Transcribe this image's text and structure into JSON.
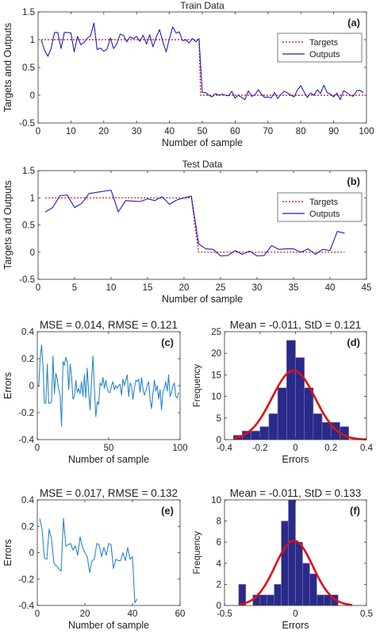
{
  "chart_data": [
    {
      "id": "a",
      "type": "line",
      "title": "Train Data",
      "panel_label": "(a)",
      "xlabel": "Number of sample",
      "ylabel": "Targets and Outputs",
      "xlim": [
        0,
        100
      ],
      "ylim": [
        -0.5,
        1.5
      ],
      "xticks": [
        0,
        10,
        20,
        30,
        40,
        50,
        60,
        70,
        80,
        90,
        100
      ],
      "yticks": [
        -0.5,
        0,
        0.5,
        1,
        1.5
      ],
      "legend": {
        "position": "top-right",
        "entries": [
          "Targets",
          "Outputs"
        ]
      },
      "series": [
        {
          "name": "Targets",
          "color": "#cc0000",
          "style": "dotted",
          "x": [
            1,
            49,
            49.5,
            99
          ],
          "y": [
            1,
            1,
            0,
            0
          ]
        },
        {
          "name": "Outputs",
          "color": "#1f1fb4",
          "style": "solid",
          "x": [
            1,
            2,
            3,
            4,
            5,
            6,
            7,
            8,
            9,
            10,
            11,
            12,
            13,
            14,
            15,
            16,
            17,
            18,
            19,
            20,
            21,
            22,
            23,
            24,
            25,
            26,
            27,
            28,
            29,
            30,
            31,
            32,
            33,
            34,
            35,
            36,
            37,
            38,
            39,
            40,
            41,
            42,
            43,
            44,
            45,
            46,
            47,
            48,
            49,
            50,
            51,
            52,
            53,
            54,
            55,
            56,
            57,
            58,
            59,
            60,
            61,
            62,
            63,
            64,
            65,
            66,
            67,
            68,
            69,
            70,
            71,
            72,
            73,
            74,
            75,
            76,
            77,
            78,
            79,
            80,
            81,
            82,
            83,
            84,
            85,
            86,
            87,
            88,
            89,
            90,
            91,
            92,
            93,
            94,
            95,
            96,
            97,
            98,
            99
          ],
          "y": [
            0.99,
            0.8,
            0.7,
            0.85,
            1.13,
            1.13,
            0.84,
            1.13,
            1.13,
            1.12,
            0.78,
            1.06,
            0.91,
            0.95,
            1.03,
            1.07,
            1.3,
            0.82,
            0.85,
            0.79,
            0.83,
            1.03,
            0.84,
            0.93,
            1.1,
            1.08,
            0.96,
            1.05,
            1.02,
            1.06,
            0.97,
            1.08,
            0.92,
            1.09,
            0.87,
            1.05,
            1.18,
            0.96,
            0.78,
            1.02,
            1.23,
            1.12,
            1.14,
            0.98,
            1.0,
            0.94,
            1.02,
            0.96,
            1.02,
            0.05,
            0.05,
            0.0,
            -0.03,
            0.03,
            0.0,
            0.02,
            0.0,
            -0.01,
            0.07,
            -0.05,
            0.0,
            -0.04,
            -0.08,
            0.08,
            -0.02,
            0.0,
            0.1,
            0.02,
            -0.04,
            -0.03,
            -0.05,
            0.05,
            -0.06,
            0.02,
            0.07,
            0.04,
            0.0,
            -0.03,
            0.1,
            0.17,
            0.06,
            -0.04,
            0.04,
            0.0,
            0.1,
            0.03,
            0.18,
            0.05,
            0.02,
            -0.03,
            0.04,
            -0.08,
            0.08,
            0.05,
            0.0,
            -0.02,
            0.08,
            0.09,
            0.05
          ]
        }
      ]
    },
    {
      "id": "b",
      "type": "line",
      "title": "Test Data",
      "panel_label": "(b)",
      "xlabel": "Number of sample",
      "ylabel": "Targets and Outputs",
      "xlim": [
        0,
        45
      ],
      "ylim": [
        -0.5,
        1.5
      ],
      "xticks": [
        0,
        5,
        10,
        15,
        20,
        25,
        30,
        35,
        40,
        45
      ],
      "yticks": [
        -0.5,
        0,
        0.5,
        1,
        1.5
      ],
      "legend": {
        "position": "top-right",
        "entries": [
          "Targets",
          "Outputs"
        ]
      },
      "series": [
        {
          "name": "Targets",
          "color": "#cc0000",
          "style": "dotted",
          "x": [
            1,
            21,
            22,
            42
          ],
          "y": [
            1,
            1,
            0,
            0
          ]
        },
        {
          "name": "Outputs",
          "color": "#1f1fb4",
          "style": "solid",
          "x": [
            1,
            2,
            3,
            4,
            5,
            6,
            7,
            8,
            9,
            10,
            11,
            12,
            13,
            14,
            15,
            16,
            17,
            18,
            19,
            20,
            21,
            22,
            23,
            24,
            25,
            26,
            27,
            28,
            29,
            30,
            31,
            32,
            33,
            34,
            35,
            36,
            37,
            38,
            39,
            40,
            41,
            42
          ],
          "y": [
            0.74,
            0.82,
            1.04,
            1.05,
            0.82,
            0.9,
            1.08,
            1.1,
            1.12,
            1.14,
            0.74,
            0.95,
            0.94,
            0.93,
            0.98,
            0.95,
            1.02,
            0.88,
            0.96,
            1.0,
            1.03,
            0.15,
            0.06,
            0.05,
            -0.07,
            -0.06,
            0.03,
            -0.04,
            0.02,
            -0.07,
            -0.06,
            0.12,
            0.05,
            0.06,
            0.06,
            0.0,
            0.06,
            -0.04,
            0.05,
            0.03,
            0.38,
            0.35
          ]
        }
      ]
    },
    {
      "id": "c",
      "type": "line",
      "title": "MSE = 0.014, RMSE = 0.121",
      "panel_label": "(c)",
      "xlabel": "Number of sample",
      "ylabel": "Errors",
      "xlim": [
        0,
        100
      ],
      "ylim": [
        -0.4,
        0.4
      ],
      "xticks": [
        0,
        50,
        100
      ],
      "yticks": [
        -0.4,
        -0.2,
        0,
        0.2,
        0.4
      ],
      "series": [
        {
          "name": "",
          "color": "#2b86c5",
          "style": "solid",
          "x": [
            1,
            2,
            3,
            4,
            5,
            6,
            7,
            8,
            9,
            10,
            11,
            12,
            13,
            14,
            15,
            16,
            17,
            18,
            19,
            20,
            21,
            22,
            23,
            24,
            25,
            26,
            27,
            28,
            29,
            30,
            31,
            32,
            33,
            34,
            35,
            36,
            37,
            38,
            39,
            40,
            41,
            42,
            43,
            44,
            45,
            46,
            47,
            48,
            49,
            50,
            51,
            52,
            53,
            54,
            55,
            56,
            57,
            58,
            59,
            60,
            61,
            62,
            63,
            64,
            65,
            66,
            67,
            68,
            69,
            70,
            71,
            72,
            73,
            74,
            75,
            76,
            77,
            78,
            79,
            80,
            81,
            82,
            83,
            84,
            85,
            86,
            87,
            88,
            89,
            90,
            91,
            92,
            93,
            94,
            95,
            96,
            97,
            98,
            99
          ],
          "y": [
            -0.01,
            0.2,
            0.3,
            0.15,
            -0.13,
            -0.13,
            0.16,
            -0.13,
            -0.13,
            -0.12,
            0.22,
            -0.06,
            0.09,
            0.05,
            -0.03,
            -0.07,
            -0.3,
            0.18,
            0.15,
            0.21,
            0.17,
            -0.03,
            0.16,
            0.07,
            -0.1,
            -0.08,
            0.04,
            -0.05,
            -0.02,
            -0.06,
            0.03,
            -0.08,
            0.08,
            -0.09,
            0.13,
            -0.05,
            -0.18,
            0.04,
            0.22,
            -0.02,
            -0.23,
            -0.12,
            -0.14,
            0.02,
            0.0,
            0.06,
            -0.02,
            0.04,
            -0.02,
            -0.05,
            -0.05,
            0.0,
            0.03,
            -0.03,
            0.0,
            -0.02,
            0.0,
            0.01,
            -0.07,
            0.05,
            0.0,
            0.04,
            0.08,
            -0.08,
            0.02,
            0.0,
            -0.1,
            -0.02,
            0.04,
            0.03,
            0.05,
            -0.05,
            0.06,
            -0.02,
            -0.07,
            -0.04,
            0.0,
            0.03,
            -0.1,
            -0.17,
            -0.06,
            0.04,
            -0.04,
            0.0,
            -0.1,
            -0.03,
            -0.18,
            -0.05,
            -0.02,
            0.03,
            -0.04,
            0.08,
            -0.08,
            -0.05,
            0.0,
            0.02,
            -0.08,
            -0.09,
            -0.05
          ]
        }
      ]
    },
    {
      "id": "d",
      "type": "bar",
      "title": "Mean = -0.011, StD = 0.121",
      "panel_label": "(d)",
      "xlabel": "Errors",
      "ylabel": "Frequency",
      "xlim": [
        -0.4,
        0.4
      ],
      "ylim": [
        0,
        25
      ],
      "xticks": [
        -0.4,
        -0.2,
        0,
        0.2,
        0.4
      ],
      "yticks": [
        0,
        5,
        10,
        15,
        20,
        25
      ],
      "bin_edges": [
        -0.35,
        -0.3,
        -0.25,
        -0.2,
        -0.15,
        -0.1,
        -0.05,
        0.0,
        0.05,
        0.1,
        0.15,
        0.2,
        0.25,
        0.3
      ],
      "values": [
        1,
        2,
        2,
        3,
        6,
        12,
        23,
        19,
        12,
        6,
        4,
        4,
        3
      ],
      "bar_color": "#2a2a8a",
      "fit": {
        "type": "normal",
        "mean": -0.011,
        "std": 0.121,
        "color": "#e01010"
      }
    },
    {
      "id": "e",
      "type": "line",
      "title": "MSE = 0.017, RMSE = 0.132",
      "panel_label": "(e)",
      "xlabel": "Number of sample",
      "ylabel": "Errors",
      "xlim": [
        0,
        60
      ],
      "ylim": [
        -0.4,
        0.4
      ],
      "xticks": [
        0,
        20,
        40,
        60
      ],
      "yticks": [
        -0.4,
        -0.2,
        0,
        0.2,
        0.4
      ],
      "series": [
        {
          "name": "",
          "color": "#2b86c5",
          "style": "solid",
          "x": [
            1,
            2,
            3,
            4,
            5,
            6,
            7,
            8,
            9,
            10,
            11,
            12,
            13,
            14,
            15,
            16,
            17,
            18,
            19,
            20,
            21,
            22,
            23,
            24,
            25,
            26,
            27,
            28,
            29,
            30,
            31,
            32,
            33,
            34,
            35,
            36,
            37,
            38,
            39,
            40,
            41,
            42
          ],
          "y": [
            0.26,
            0.18,
            -0.04,
            -0.05,
            0.18,
            0.1,
            -0.08,
            -0.1,
            -0.12,
            -0.14,
            0.26,
            0.05,
            0.06,
            0.07,
            0.02,
            0.05,
            -0.02,
            0.12,
            0.04,
            0.0,
            -0.03,
            -0.15,
            -0.06,
            -0.05,
            0.07,
            0.06,
            -0.03,
            0.04,
            -0.02,
            0.07,
            0.06,
            -0.12,
            -0.05,
            -0.06,
            -0.06,
            0.0,
            -0.06,
            0.04,
            -0.05,
            -0.03,
            -0.38,
            -0.35
          ]
        }
      ]
    },
    {
      "id": "f",
      "type": "bar",
      "title": "Mean = -0.011, StD = 0.133",
      "panel_label": "(f)",
      "xlabel": "Errors",
      "ylabel": "Frequency",
      "xlim": [
        -0.5,
        0.5
      ],
      "ylim": [
        0,
        10
      ],
      "xticks": [
        -0.5,
        0,
        0.5
      ],
      "yticks": [
        0,
        2,
        4,
        6,
        8,
        10
      ],
      "bin_edges": [
        -0.4,
        -0.35,
        -0.3,
        -0.25,
        -0.2,
        -0.15,
        -0.1,
        -0.05,
        0.0,
        0.05,
        0.1,
        0.15,
        0.2,
        0.25,
        0.3
      ],
      "values": [
        2,
        0,
        1,
        1,
        1,
        2,
        8,
        10,
        6,
        4,
        3,
        1,
        1,
        1
      ],
      "bar_color": "#2a2a8a",
      "fit": {
        "type": "normal",
        "mean": -0.011,
        "std": 0.133,
        "color": "#e01010"
      }
    }
  ]
}
